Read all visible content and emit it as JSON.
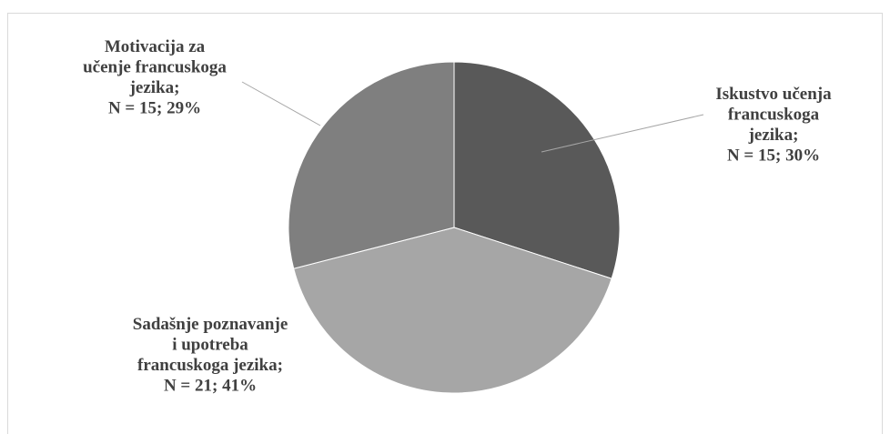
{
  "chart_data": {
    "type": "pie",
    "series": [
      {
        "values": [
          15,
          21,
          15
        ],
        "percent": [
          30,
          41,
          29
        ]
      }
    ],
    "slices": [
      {
        "value": 15,
        "percent": 30,
        "color": "#595959",
        "label_lines": [
          "Iskustvo učenja",
          "francuskoga",
          "jezika;",
          "N = 15; 30%"
        ]
      },
      {
        "value": 21,
        "percent": 41,
        "color": "#a6a6a6",
        "label_lines": [
          "Sadašnje poznavanje",
          "i upotreba",
          "francuskoga jezika;",
          "N = 21; 41%"
        ]
      },
      {
        "value": 15,
        "percent": 29,
        "color": "#7f7f7f",
        "label_lines": [
          "Motivacija za",
          "učenje francuskoga",
          "jezika;",
          "N = 15; 29%"
        ]
      }
    ],
    "legend": "none",
    "label_color": "#404040",
    "leader_line_color": "#a6a6a6"
  }
}
